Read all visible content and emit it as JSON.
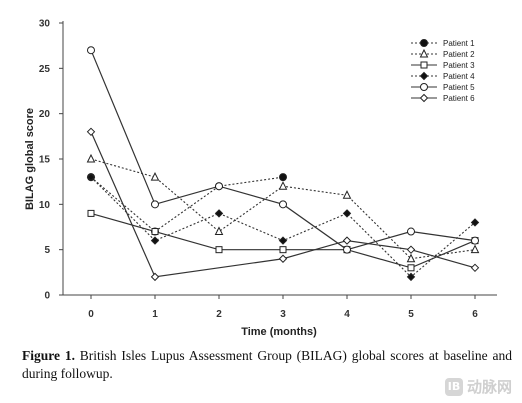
{
  "chart_data": {
    "type": "line",
    "title": "",
    "xlabel": "Time (months)",
    "ylabel": "BILAG global score",
    "x": [
      0,
      1,
      2,
      3,
      4,
      5,
      6
    ],
    "xlim": [
      0,
      6
    ],
    "ylim": [
      0,
      30
    ],
    "xticks": [
      "0",
      "1",
      "2",
      "3",
      "4",
      "5",
      "6"
    ],
    "yticks": [
      "0",
      "5",
      "10",
      "15",
      "20",
      "25",
      "30"
    ],
    "grid": false,
    "legend_position": "top-right",
    "series": [
      {
        "name": "Patient 1",
        "marker": "filled-circle",
        "line": "dotted",
        "values": [
          13,
          7,
          12,
          13,
          null,
          null,
          null
        ]
      },
      {
        "name": "Patient 2",
        "marker": "open-triangle",
        "line": "dotted",
        "values": [
          15,
          13,
          7,
          12,
          11,
          4,
          5
        ]
      },
      {
        "name": "Patient 3",
        "marker": "open-square",
        "line": "solid",
        "values": [
          9,
          7,
          5,
          5,
          5,
          3,
          6
        ]
      },
      {
        "name": "Patient 4",
        "marker": "filled-diamond",
        "line": "dotted",
        "values": [
          13,
          6,
          9,
          6,
          9,
          2,
          8
        ]
      },
      {
        "name": "Patient 5",
        "marker": "open-circle",
        "line": "solid",
        "values": [
          27,
          10,
          12,
          10,
          5,
          7,
          6
        ]
      },
      {
        "name": "Patient 6",
        "marker": "open-diamond",
        "line": "solid",
        "values": [
          18,
          2,
          null,
          4,
          6,
          5,
          3
        ]
      }
    ]
  },
  "caption": {
    "lead": "Figure 1.",
    "text": "British Isles Lupus Assessment Group (BILAG) global scores at baseline and during followup."
  },
  "watermark": {
    "logo": "IB",
    "text": "动脉网"
  }
}
